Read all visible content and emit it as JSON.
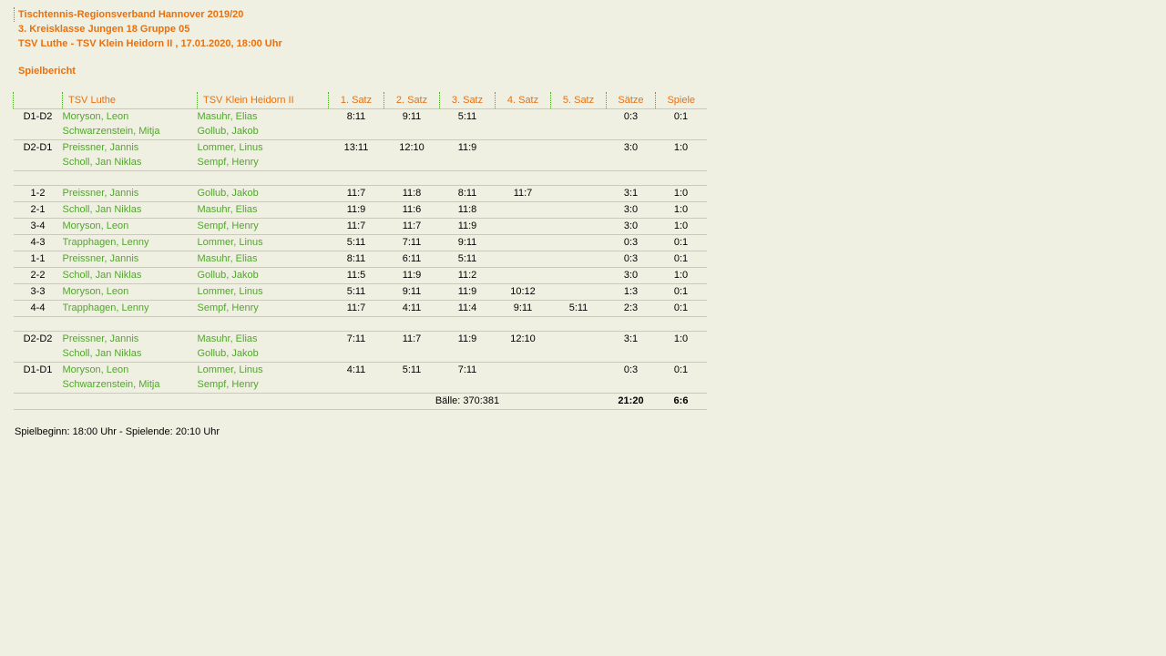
{
  "header": {
    "line1": "Tischtennis-Regionsverband Hannover 2019/20",
    "line2": "3. Kreisklasse Jungen 18 Gruppe 05",
    "line3": "TSV Luthe - TSV Klein Heidorn II , 17.01.2020, 18:00 Uhr",
    "section": "Spielbericht"
  },
  "colors": {
    "accent_orange": "#e8700f",
    "accent_green": "#52a52e",
    "background": "#f0f0e2",
    "separator_line": "#c9c9bc",
    "text": "#000000"
  },
  "table": {
    "headers": [
      "",
      "TSV Luthe",
      "TSV Klein Heidorn II",
      "1. Satz",
      "2. Satz",
      "3. Satz",
      "4. Satz",
      "5. Satz",
      "Sätze",
      "Spiele"
    ],
    "groups": [
      {
        "rows": [
          {
            "label": "D1-D2",
            "home": [
              "Moryson, Leon",
              "Schwarzenstein, Mitja"
            ],
            "away": [
              "Masuhr, Elias",
              "Gollub, Jakob"
            ],
            "sets": [
              "8:11",
              "9:11",
              "5:11",
              "",
              ""
            ],
            "saetze": "0:3",
            "spiele": "0:1"
          },
          {
            "label": "D2-D1",
            "home": [
              "Preissner, Jannis",
              "Scholl, Jan Niklas"
            ],
            "away": [
              "Lommer, Linus",
              "Sempf, Henry"
            ],
            "sets": [
              "13:11",
              "12:10",
              "11:9",
              "",
              ""
            ],
            "saetze": "3:0",
            "spiele": "1:0"
          }
        ]
      },
      {
        "rows": [
          {
            "label": "1-2",
            "home": [
              "Preissner, Jannis"
            ],
            "away": [
              "Gollub, Jakob"
            ],
            "sets": [
              "11:7",
              "11:8",
              "8:11",
              "11:7",
              ""
            ],
            "saetze": "3:1",
            "spiele": "1:0"
          },
          {
            "label": "2-1",
            "home": [
              "Scholl, Jan Niklas"
            ],
            "away": [
              "Masuhr, Elias"
            ],
            "sets": [
              "11:9",
              "11:6",
              "11:8",
              "",
              ""
            ],
            "saetze": "3:0",
            "spiele": "1:0"
          },
          {
            "label": "3-4",
            "home": [
              "Moryson, Leon"
            ],
            "away": [
              "Sempf, Henry"
            ],
            "sets": [
              "11:7",
              "11:7",
              "11:9",
              "",
              ""
            ],
            "saetze": "3:0",
            "spiele": "1:0"
          },
          {
            "label": "4-3",
            "home": [
              "Trapphagen, Lenny"
            ],
            "away": [
              "Lommer, Linus"
            ],
            "sets": [
              "5:11",
              "7:11",
              "9:11",
              "",
              ""
            ],
            "saetze": "0:3",
            "spiele": "0:1"
          },
          {
            "label": "1-1",
            "home": [
              "Preissner, Jannis"
            ],
            "away": [
              "Masuhr, Elias"
            ],
            "sets": [
              "8:11",
              "6:11",
              "5:11",
              "",
              ""
            ],
            "saetze": "0:3",
            "spiele": "0:1"
          },
          {
            "label": "2-2",
            "home": [
              "Scholl, Jan Niklas"
            ],
            "away": [
              "Gollub, Jakob"
            ],
            "sets": [
              "11:5",
              "11:9",
              "11:2",
              "",
              ""
            ],
            "saetze": "3:0",
            "spiele": "1:0"
          },
          {
            "label": "3-3",
            "home": [
              "Moryson, Leon"
            ],
            "away": [
              "Lommer, Linus"
            ],
            "sets": [
              "5:11",
              "9:11",
              "11:9",
              "10:12",
              ""
            ],
            "saetze": "1:3",
            "spiele": "0:1"
          },
          {
            "label": "4-4",
            "home": [
              "Trapphagen, Lenny"
            ],
            "away": [
              "Sempf, Henry"
            ],
            "sets": [
              "11:7",
              "4:11",
              "11:4",
              "9:11",
              "5:11"
            ],
            "saetze": "2:3",
            "spiele": "0:1"
          }
        ]
      },
      {
        "rows": [
          {
            "label": "D2-D2",
            "home": [
              "Preissner, Jannis",
              "Scholl, Jan Niklas"
            ],
            "away": [
              "Masuhr, Elias",
              "Gollub, Jakob"
            ],
            "sets": [
              "7:11",
              "11:7",
              "11:9",
              "12:10",
              ""
            ],
            "saetze": "3:1",
            "spiele": "1:0"
          },
          {
            "label": "D1-D1",
            "home": [
              "Moryson, Leon",
              "Schwarzenstein, Mitja"
            ],
            "away": [
              "Lommer, Linus",
              "Sempf, Henry"
            ],
            "sets": [
              "4:11",
              "5:11",
              "7:11",
              "",
              ""
            ],
            "saetze": "0:3",
            "spiele": "0:1"
          }
        ]
      }
    ],
    "totals": {
      "balls_label": "Bälle: 370:381",
      "saetze": "21:20",
      "spiele": "6:6"
    }
  },
  "footer": {
    "text": "Spielbeginn: 18:00 Uhr - Spielende: 20:10 Uhr"
  }
}
